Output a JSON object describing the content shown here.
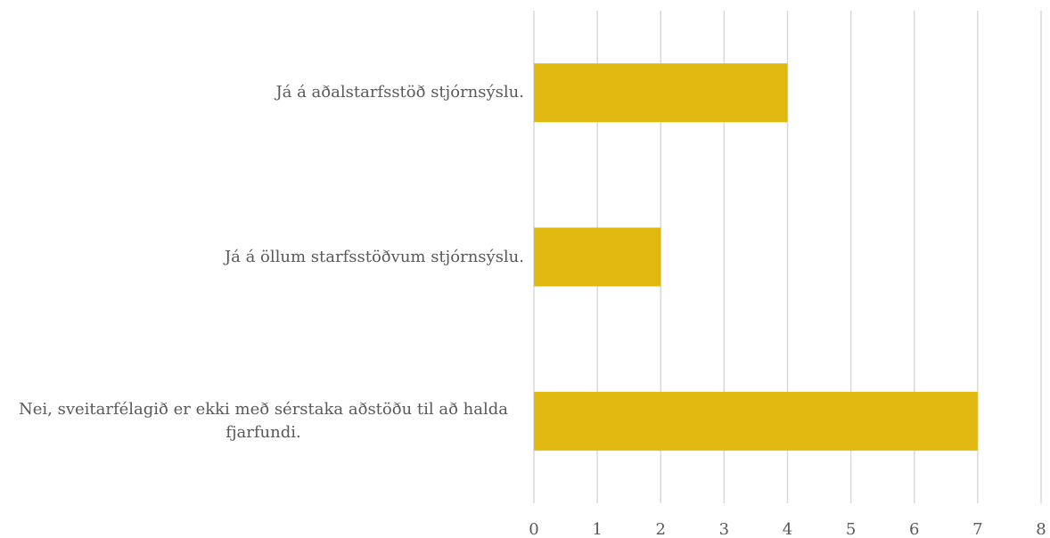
{
  "chart_data": {
    "type": "bar",
    "orientation": "horizontal",
    "categories": [
      "Já á aðalstarfsstöð stjórnsýslu.",
      "Já á öllum starfsstöðvum stjórnsýslu.",
      "Nei, sveitarfélagið er ekki með sérstaka aðstöðu til að halda fjarfundi."
    ],
    "values": [
      4,
      2,
      7
    ],
    "color": "#e0b80f",
    "xlim": [
      0,
      8
    ],
    "xticks": [
      0,
      1,
      2,
      3,
      4,
      5,
      6,
      7,
      8
    ],
    "grid": true
  }
}
